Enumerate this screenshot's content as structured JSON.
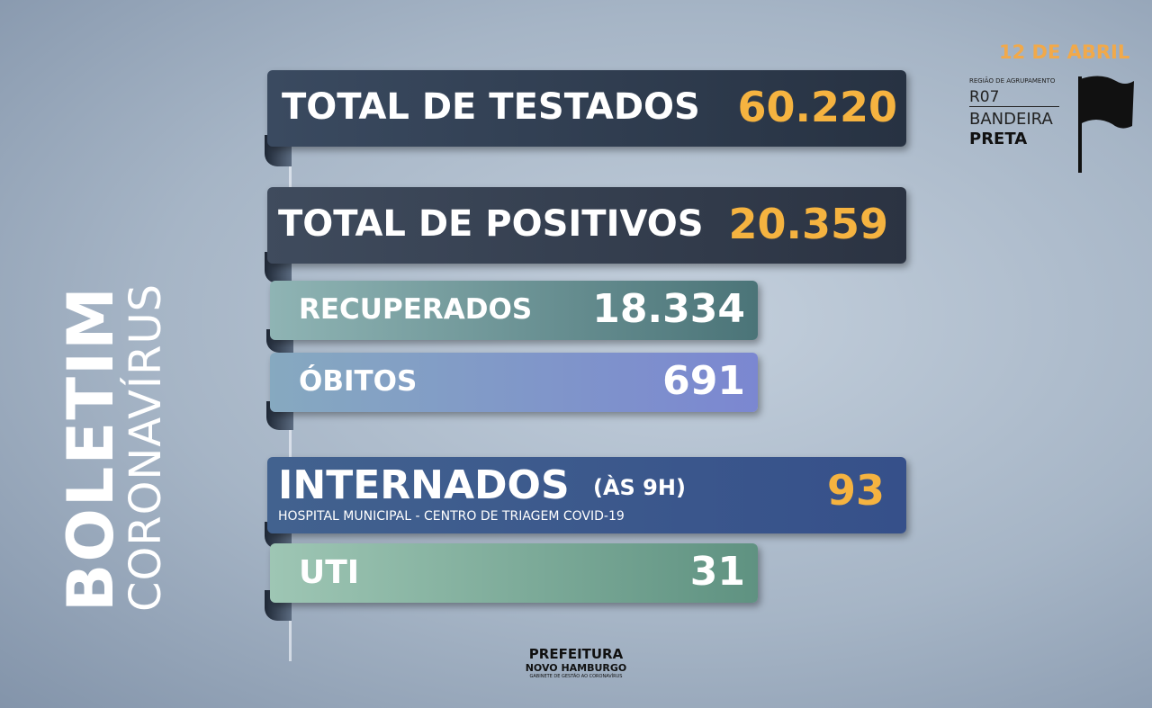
{
  "title": {
    "main": "BOLETIM",
    "sub": "CORONAVÍRUS"
  },
  "date": "12 DE ABRIL",
  "region": {
    "caption": "REGIÃO DE AGRUPAMENTO",
    "code": "R07",
    "flag_line1": "BANDEIRA",
    "flag_line2": "PRETA"
  },
  "stats": [
    {
      "label": "TOTAL DE TESTADOS",
      "value": "60.220"
    },
    {
      "label": "TOTAL DE POSITIVOS",
      "value": "20.359"
    },
    {
      "label": "RECUPERADOS",
      "value": "18.334"
    },
    {
      "label": "ÓBITOS",
      "value": "691"
    }
  ],
  "hospital": {
    "label": "INTERNADOS",
    "note": "(ÀS 9H)",
    "detail": "HOSPITAL MUNICIPAL - CENTRO DE TRIAGEM COVID-19",
    "value": "93",
    "icu_label": "UTI",
    "icu_value": "31"
  },
  "footer": {
    "line1": "PREFEITURA",
    "line2": "NOVO HAMBURGO",
    "line3": "GABINETE DE GESTÃO AO CORONAVÍRUS"
  }
}
